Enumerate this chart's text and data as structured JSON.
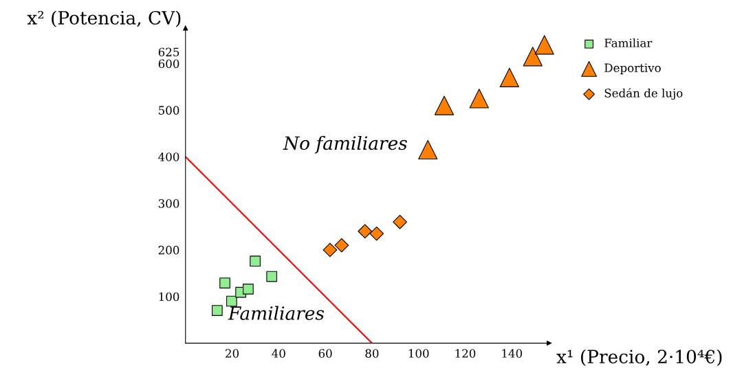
{
  "chart_data": {
    "type": "scatter",
    "xlabel": "x¹ (Precio, 2·10⁴€)",
    "ylabel": "x² (Potencia, CV)",
    "xlim": [
      0,
      156
    ],
    "ylim": [
      0,
      676
    ],
    "xticks": [
      20,
      40,
      60,
      80,
      100,
      120,
      140
    ],
    "yticks": [
      100,
      200,
      300,
      400,
      500,
      600,
      625
    ],
    "grid": false,
    "legend": "top right",
    "annotations": [
      "No familiares",
      "Familiares"
    ],
    "series": [
      {
        "name": "Familiar",
        "color": "#90ee90",
        "marker": "square",
        "x": [
          13.6,
          16.9,
          19.8,
          23.7,
          26.9,
          29.9,
          37
        ],
        "values": [
          70,
          129,
          90,
          109,
          116,
          176,
          143
        ]
      },
      {
        "name": "Deportivo",
        "color": "#ff8000",
        "marker": "triangle",
        "x": [
          104,
          111,
          126,
          139,
          149,
          154
        ],
        "values": [
          415,
          510,
          525,
          570,
          615,
          640
        ]
      },
      {
        "name": "Sedán de lujo",
        "color": "#ff8000",
        "marker": "diamond",
        "x": [
          62,
          67,
          77,
          82,
          92
        ],
        "values": [
          200,
          210,
          240,
          235,
          260
        ]
      },
      {
        "type": "line",
        "color": "#ff0000",
        "marker": "none",
        "x": [
          0,
          80
        ],
        "values": [
          400,
          0
        ]
      }
    ]
  }
}
